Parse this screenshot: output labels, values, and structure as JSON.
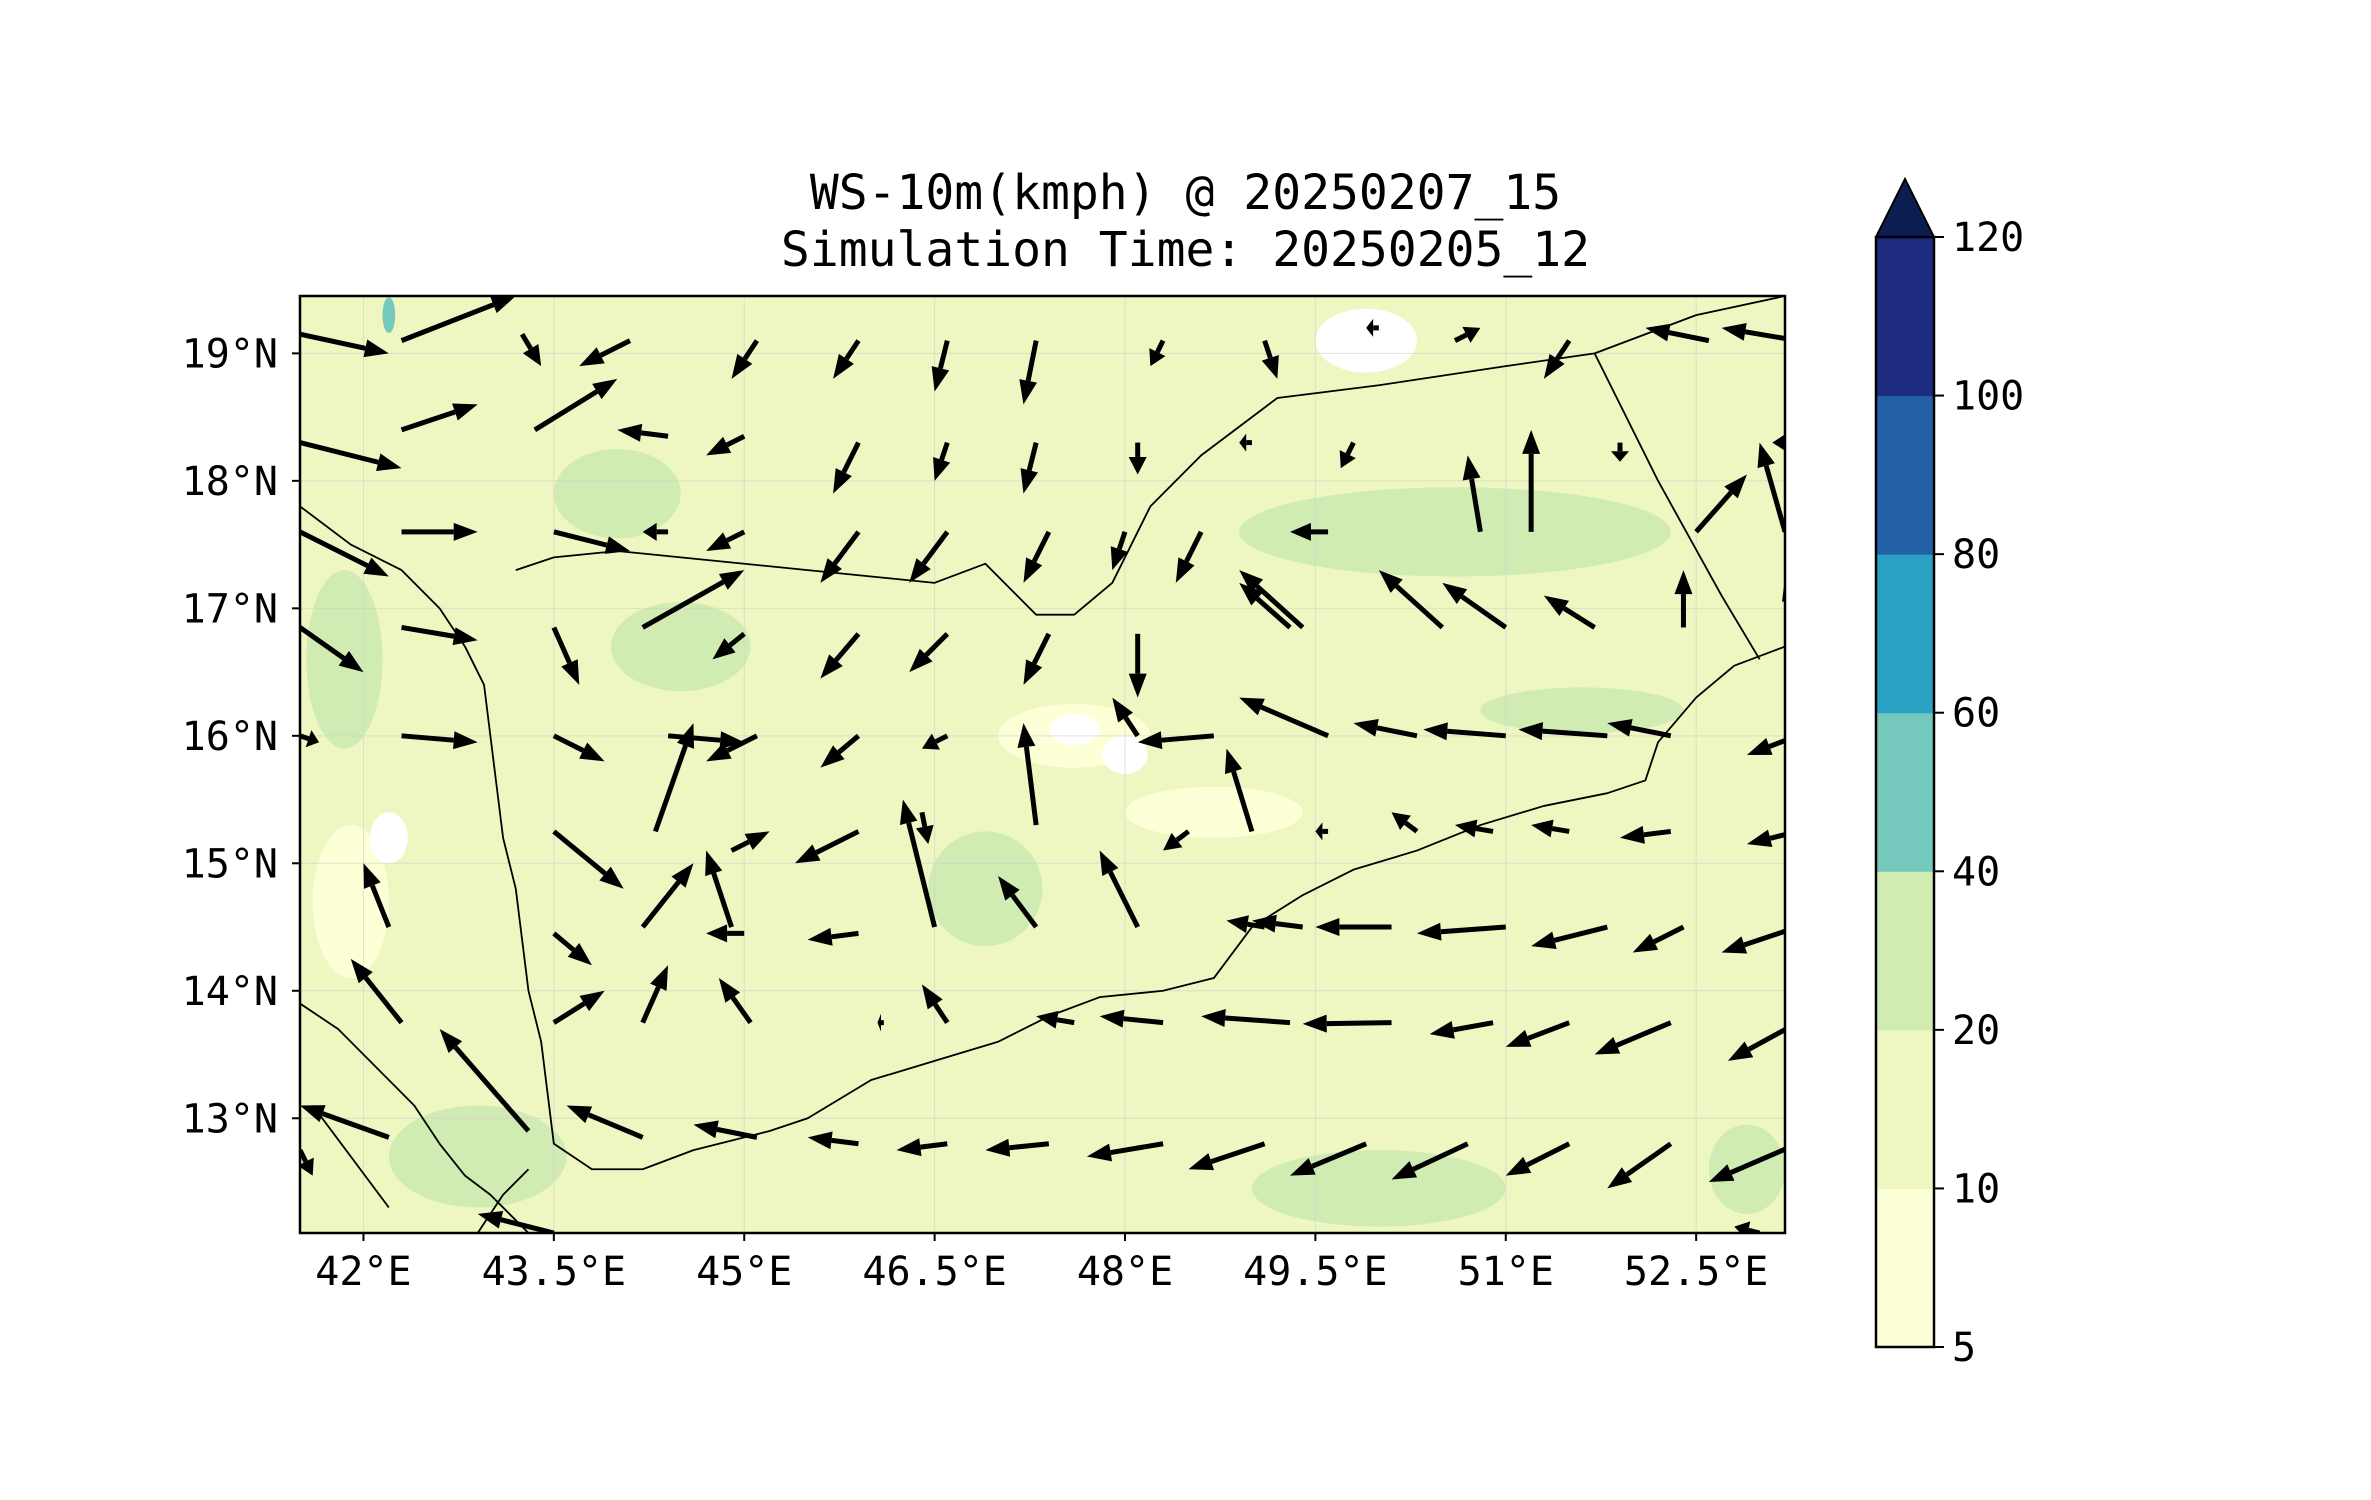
{
  "title": {
    "line1": "WS-10m(kmph) @ 20250207_15",
    "line2": "Simulation Time: 20250205_12"
  },
  "map": {
    "lon_range": [
      41.5,
      53.2
    ],
    "lat_range": [
      12.1,
      19.45
    ],
    "x_ticks": [
      {
        "value": 42.0,
        "label": "42°E"
      },
      {
        "value": 43.5,
        "label": "43.5°E"
      },
      {
        "value": 45.0,
        "label": "45°E"
      },
      {
        "value": 46.5,
        "label": "46.5°E"
      },
      {
        "value": 48.0,
        "label": "48°E"
      },
      {
        "value": 49.5,
        "label": "49.5°E"
      },
      {
        "value": 51.0,
        "label": "51°E"
      },
      {
        "value": 52.5,
        "label": "52.5°E"
      }
    ],
    "y_ticks": [
      {
        "value": 13,
        "label": "13°N"
      },
      {
        "value": 14,
        "label": "14°N"
      },
      {
        "value": 15,
        "label": "15°N"
      },
      {
        "value": 16,
        "label": "16°N"
      },
      {
        "value": 17,
        "label": "17°N"
      },
      {
        "value": 18,
        "label": "18°N"
      },
      {
        "value": 19,
        "label": "19°N"
      }
    ],
    "grid": true,
    "base_fill_color": "#eef7c1",
    "vector_color": "#000000",
    "coast_color": "#000000"
  },
  "colorbar": {
    "levels": [
      5,
      10,
      20,
      40,
      60,
      80,
      100,
      120
    ],
    "labels": [
      "5",
      "10",
      "20",
      "40",
      "60",
      "80",
      "100",
      "120"
    ],
    "colors": [
      "#fdffd7",
      "#eef7c1",
      "#d1ecb3",
      "#75c8bc",
      "#2ba2c5",
      "#2260a8",
      "#1d2c81"
    ],
    "extend_color": "#0c1e51",
    "extend": "max"
  },
  "contour_patches": [
    {
      "color": "#d1ecb3",
      "lon": 44.5,
      "lat": 16.7,
      "rlon": 0.55,
      "rlat": 0.35
    },
    {
      "color": "#d1ecb3",
      "lon": 46.9,
      "lat": 14.8,
      "rlon": 0.45,
      "rlat": 0.45
    },
    {
      "color": "#d1ecb3",
      "lon": 50.6,
      "lat": 17.6,
      "rlon": 1.7,
      "rlat": 0.35
    },
    {
      "color": "#d1ecb3",
      "lon": 51.6,
      "lat": 16.2,
      "rlon": 0.8,
      "rlat": 0.18
    },
    {
      "color": "#d1ecb3",
      "lon": 50.0,
      "lat": 12.45,
      "rlon": 1.0,
      "rlat": 0.3
    },
    {
      "color": "#d1ecb3",
      "lon": 42.9,
      "lat": 12.7,
      "rlon": 0.7,
      "rlat": 0.4
    },
    {
      "color": "#d1ecb3",
      "lon": 44.0,
      "lat": 17.9,
      "rlon": 0.5,
      "rlat": 0.35
    },
    {
      "color": "#d1ecb3",
      "lon": 41.85,
      "lat": 16.6,
      "rlon": 0.3,
      "rlat": 0.7
    },
    {
      "color": "#d1ecb3",
      "lon": 52.9,
      "lat": 12.6,
      "rlon": 0.3,
      "rlat": 0.35
    },
    {
      "color": "#fdffd7",
      "lon": 41.9,
      "lat": 14.7,
      "rlon": 0.3,
      "rlat": 0.6
    },
    {
      "color": "#fdffd7",
      "lon": 47.6,
      "lat": 16.0,
      "rlon": 0.6,
      "rlat": 0.25
    },
    {
      "color": "#fdffd7",
      "lon": 48.7,
      "lat": 15.4,
      "rlon": 0.7,
      "rlat": 0.2
    },
    {
      "color": "#ffffff",
      "lon": 49.9,
      "lat": 19.1,
      "rlon": 0.4,
      "rlat": 0.25
    },
    {
      "color": "#ffffff",
      "lon": 47.6,
      "lat": 16.05,
      "rlon": 0.2,
      "rlat": 0.12
    },
    {
      "color": "#ffffff",
      "lon": 48.0,
      "lat": 15.85,
      "rlon": 0.18,
      "rlat": 0.15
    },
    {
      "color": "#ffffff",
      "lon": 42.2,
      "lat": 15.2,
      "rlon": 0.15,
      "rlat": 0.2
    },
    {
      "color": "#75c8bc",
      "lon": 42.2,
      "lat": 19.3,
      "rlon": 0.05,
      "rlat": 0.14
    }
  ],
  "coastline": [
    [
      41.5,
      17.8
    ],
    [
      41.9,
      17.5
    ],
    [
      42.3,
      17.3
    ],
    [
      42.6,
      17.0
    ],
    [
      42.8,
      16.7
    ],
    [
      42.95,
      16.4
    ],
    [
      43.0,
      16.0
    ],
    [
      43.05,
      15.6
    ],
    [
      43.1,
      15.2
    ],
    [
      43.2,
      14.8
    ],
    [
      43.25,
      14.4
    ],
    [
      43.3,
      14.0
    ],
    [
      43.4,
      13.6
    ],
    [
      43.45,
      13.2
    ],
    [
      43.5,
      12.8
    ],
    [
      43.8,
      12.6
    ],
    [
      44.2,
      12.6
    ],
    [
      44.6,
      12.75
    ],
    [
      45.0,
      12.85
    ],
    [
      45.2,
      12.9
    ],
    [
      45.5,
      13.0
    ],
    [
      46.0,
      13.3
    ],
    [
      46.5,
      13.45
    ],
    [
      47.0,
      13.6
    ],
    [
      47.4,
      13.8
    ],
    [
      47.8,
      13.95
    ],
    [
      48.3,
      14.0
    ],
    [
      48.7,
      14.1
    ],
    [
      49.0,
      14.5
    ],
    [
      49.4,
      14.75
    ],
    [
      49.8,
      14.95
    ],
    [
      50.3,
      15.1
    ],
    [
      50.8,
      15.3
    ],
    [
      51.3,
      15.45
    ],
    [
      51.8,
      15.55
    ],
    [
      52.1,
      15.65
    ],
    [
      52.2,
      15.95
    ],
    [
      52.5,
      16.3
    ],
    [
      52.8,
      16.55
    ],
    [
      53.2,
      16.7
    ]
  ],
  "africa_coast": [
    [
      41.5,
      13.9
    ],
    [
      41.8,
      13.7
    ],
    [
      42.1,
      13.4
    ],
    [
      42.4,
      13.1
    ],
    [
      42.6,
      12.8
    ],
    [
      42.8,
      12.55
    ],
    [
      43.0,
      12.4
    ],
    [
      43.3,
      12.1
    ]
  ],
  "borders": [
    [
      [
        43.2,
        17.3
      ],
      [
        43.5,
        17.4
      ],
      [
        44.0,
        17.45
      ],
      [
        44.5,
        17.4
      ],
      [
        45.0,
        17.35
      ],
      [
        45.5,
        17.3
      ],
      [
        46.0,
        17.25
      ],
      [
        46.5,
        17.2
      ],
      [
        46.9,
        17.35
      ],
      [
        47.3,
        16.95
      ],
      [
        47.6,
        16.95
      ],
      [
        47.9,
        17.2
      ],
      [
        48.2,
        17.8
      ],
      [
        48.6,
        18.2
      ],
      [
        49.0,
        18.5
      ],
      [
        49.2,
        18.65
      ],
      [
        50.0,
        18.75
      ],
      [
        51.0,
        18.9
      ],
      [
        51.7,
        19.0
      ],
      [
        52.5,
        19.3
      ],
      [
        53.2,
        19.45
      ]
    ],
    [
      [
        51.7,
        19.0
      ],
      [
        52.2,
        18.0
      ],
      [
        52.7,
        17.1
      ],
      [
        53.0,
        16.6
      ]
    ],
    [
      [
        42.9,
        12.1
      ],
      [
        43.1,
        12.4
      ],
      [
        43.3,
        12.6
      ]
    ],
    [
      [
        41.6,
        13.1
      ],
      [
        41.9,
        12.7
      ],
      [
        42.2,
        12.3
      ]
    ]
  ],
  "vectors": [
    [
      41.5,
      19.15,
      42.2,
      19.0
    ],
    [
      42.3,
      19.1,
      43.2,
      19.45
    ],
    [
      43.25,
      19.15,
      43.4,
      18.9
    ],
    [
      44.1,
      19.1,
      43.7,
      18.9
    ],
    [
      45.1,
      19.1,
      44.9,
      18.8
    ],
    [
      45.9,
      19.1,
      45.7,
      18.8
    ],
    [
      46.6,
      19.1,
      46.5,
      18.7
    ],
    [
      47.3,
      19.1,
      47.2,
      18.6
    ],
    [
      48.3,
      19.1,
      48.2,
      18.9
    ],
    [
      49.1,
      19.1,
      49.2,
      18.8
    ],
    [
      50.0,
      19.2,
      49.9,
      19.2
    ],
    [
      50.6,
      19.1,
      50.8,
      19.2
    ],
    [
      51.5,
      19.1,
      51.3,
      18.8
    ],
    [
      52.6,
      19.1,
      52.1,
      19.2
    ],
    [
      53.3,
      19.1,
      52.7,
      19.2
    ],
    [
      41.5,
      18.3,
      42.3,
      18.1
    ],
    [
      42.3,
      18.4,
      42.9,
      18.6
    ],
    [
      43.35,
      18.4,
      44.0,
      18.8
    ],
    [
      44.4,
      18.35,
      44.0,
      18.4
    ],
    [
      45.0,
      18.35,
      44.7,
      18.2
    ],
    [
      45.9,
      18.3,
      45.7,
      17.9
    ],
    [
      46.6,
      18.3,
      46.5,
      18.0
    ],
    [
      47.3,
      18.3,
      47.2,
      17.9
    ],
    [
      48.1,
      18.3,
      48.1,
      18.05
    ],
    [
      49.0,
      18.3,
      48.9,
      18.3
    ],
    [
      49.8,
      18.3,
      49.7,
      18.1
    ],
    [
      50.8,
      17.6,
      50.7,
      18.2
    ],
    [
      51.2,
      17.6,
      51.2,
      18.4
    ],
    [
      51.9,
      18.3,
      51.9,
      18.15
    ],
    [
      52.5,
      17.6,
      52.9,
      18.05
    ],
    [
      53.2,
      17.6,
      53.0,
      18.3
    ],
    [
      53.3,
      18.3,
      53.1,
      18.3
    ],
    [
      41.5,
      17.6,
      42.2,
      17.25
    ],
    [
      42.3,
      17.6,
      42.9,
      17.6
    ],
    [
      43.5,
      17.6,
      44.1,
      17.45
    ],
    [
      44.4,
      17.6,
      44.2,
      17.6
    ],
    [
      45.0,
      17.6,
      44.7,
      17.45
    ],
    [
      45.9,
      17.6,
      45.6,
      17.2
    ],
    [
      46.6,
      17.6,
      46.3,
      17.2
    ],
    [
      47.4,
      17.6,
      47.2,
      17.2
    ],
    [
      48.0,
      17.6,
      47.9,
      17.3
    ],
    [
      48.6,
      17.6,
      48.4,
      17.2
    ],
    [
      49.6,
      17.6,
      49.3,
      17.6
    ],
    [
      50.5,
      16.85,
      50.0,
      17.3
    ],
    [
      51.0,
      16.85,
      50.5,
      17.2
    ],
    [
      51.7,
      16.85,
      51.3,
      17.1
    ],
    [
      52.4,
      16.85,
      52.4,
      17.3
    ],
    [
      53.3,
      16.85,
      53.2,
      17.25
    ],
    [
      49.4,
      16.85,
      48.9,
      17.3
    ],
    [
      49.3,
      16.85,
      48.9,
      17.2
    ],
    [
      41.5,
      16.85,
      42.0,
      16.5
    ],
    [
      42.3,
      16.85,
      42.9,
      16.75
    ],
    [
      43.5,
      16.85,
      43.7,
      16.4
    ],
    [
      44.2,
      16.85,
      45.0,
      17.3
    ],
    [
      45.0,
      16.8,
      44.75,
      16.6
    ],
    [
      45.9,
      16.8,
      45.6,
      16.45
    ],
    [
      46.6,
      16.8,
      46.3,
      16.5
    ],
    [
      47.4,
      16.8,
      47.2,
      16.4
    ],
    [
      48.1,
      16.8,
      48.1,
      16.3
    ],
    [
      41.5,
      16.0,
      41.65,
      15.95
    ],
    [
      42.3,
      16.0,
      42.9,
      15.95
    ],
    [
      43.5,
      16.0,
      43.9,
      15.8
    ],
    [
      44.4,
      16.0,
      45.0,
      15.95
    ],
    [
      45.1,
      16.0,
      44.7,
      15.8
    ],
    [
      45.9,
      16.0,
      45.6,
      15.75
    ],
    [
      46.6,
      16.0,
      46.4,
      15.9
    ],
    [
      47.3,
      15.3,
      47.2,
      16.1
    ],
    [
      48.1,
      16.0,
      47.9,
      16.3
    ],
    [
      48.7,
      16.0,
      48.1,
      15.95
    ],
    [
      49.6,
      16.0,
      48.9,
      16.3
    ],
    [
      50.3,
      16.0,
      49.8,
      16.1
    ],
    [
      51.0,
      16.0,
      50.35,
      16.05
    ],
    [
      51.8,
      16.0,
      51.1,
      16.05
    ],
    [
      52.3,
      16.0,
      51.8,
      16.1
    ],
    [
      53.3,
      16.0,
      52.9,
      15.85
    ],
    [
      44.3,
      15.25,
      44.6,
      16.1
    ],
    [
      49.0,
      15.25,
      48.8,
      15.9
    ],
    [
      49.6,
      15.25,
      49.5,
      15.25
    ],
    [
      50.3,
      15.25,
      50.1,
      15.4
    ],
    [
      50.9,
      15.25,
      50.6,
      15.3
    ],
    [
      51.5,
      15.25,
      51.2,
      15.3
    ],
    [
      52.3,
      15.25,
      51.9,
      15.2
    ],
    [
      53.3,
      15.25,
      52.9,
      15.15
    ],
    [
      42.2,
      14.5,
      42.0,
      15.0
    ],
    [
      43.5,
      15.25,
      44.05,
      14.8
    ],
    [
      44.2,
      14.5,
      44.6,
      15.0
    ],
    [
      44.9,
      14.5,
      44.7,
      15.1
    ],
    [
      44.9,
      15.1,
      45.2,
      15.25
    ],
    [
      45.9,
      15.25,
      45.4,
      15.0
    ],
    [
      46.5,
      14.5,
      46.25,
      15.5
    ],
    [
      46.4,
      15.4,
      46.45,
      15.15
    ],
    [
      47.3,
      14.5,
      47.0,
      14.9
    ],
    [
      48.1,
      14.5,
      47.8,
      15.1
    ],
    [
      48.5,
      15.25,
      48.3,
      15.1
    ],
    [
      49.4,
      14.5,
      49.0,
      14.55
    ],
    [
      49.1,
      14.5,
      48.8,
      14.55
    ],
    [
      50.1,
      14.5,
      49.5,
      14.5
    ],
    [
      51.0,
      14.5,
      50.3,
      14.45
    ],
    [
      51.8,
      14.5,
      51.2,
      14.35
    ],
    [
      52.4,
      14.5,
      52.0,
      14.3
    ],
    [
      53.3,
      14.5,
      52.7,
      14.3
    ],
    [
      43.5,
      14.45,
      43.8,
      14.2
    ],
    [
      45.0,
      14.45,
      44.7,
      14.45
    ],
    [
      45.9,
      14.45,
      45.5,
      14.4
    ],
    [
      42.3,
      13.75,
      41.9,
      14.25
    ],
    [
      43.5,
      13.75,
      43.9,
      14.0
    ],
    [
      44.2,
      13.75,
      44.4,
      14.2
    ],
    [
      45.05,
      13.75,
      44.8,
      14.1
    ],
    [
      46.1,
      13.75,
      46.05,
      13.75
    ],
    [
      46.6,
      13.75,
      46.4,
      14.05
    ],
    [
      47.6,
      13.75,
      47.3,
      13.8
    ],
    [
      48.3,
      13.75,
      47.8,
      13.8
    ],
    [
      49.3,
      13.75,
      48.6,
      13.8
    ],
    [
      50.1,
      13.75,
      49.4,
      13.74
    ],
    [
      50.9,
      13.75,
      50.4,
      13.66
    ],
    [
      51.5,
      13.75,
      51.0,
      13.56
    ],
    [
      52.3,
      13.75,
      51.7,
      13.5
    ],
    [
      53.3,
      13.75,
      52.75,
      13.45
    ],
    [
      42.2,
      12.85,
      41.5,
      13.1
    ],
    [
      43.3,
      12.9,
      42.6,
      13.7
    ],
    [
      44.2,
      12.85,
      43.6,
      13.1
    ],
    [
      45.1,
      12.85,
      44.6,
      12.95
    ],
    [
      45.9,
      12.8,
      45.5,
      12.85
    ],
    [
      46.6,
      12.8,
      46.2,
      12.75
    ],
    [
      47.4,
      12.8,
      46.9,
      12.75
    ],
    [
      48.3,
      12.8,
      47.7,
      12.7
    ],
    [
      49.1,
      12.8,
      48.5,
      12.6
    ],
    [
      49.9,
      12.8,
      49.3,
      12.55
    ],
    [
      50.7,
      12.8,
      50.1,
      12.52
    ],
    [
      51.5,
      12.8,
      51.0,
      12.55
    ],
    [
      52.3,
      12.8,
      51.8,
      12.45
    ],
    [
      53.3,
      12.8,
      52.6,
      12.5
    ],
    [
      41.5,
      12.75,
      41.6,
      12.55
    ],
    [
      43.5,
      12.1,
      42.9,
      12.25
    ],
    [
      42.8,
      12.1,
      42.8,
      12.1
    ],
    [
      53.0,
      12.1,
      52.8,
      12.15
    ]
  ]
}
